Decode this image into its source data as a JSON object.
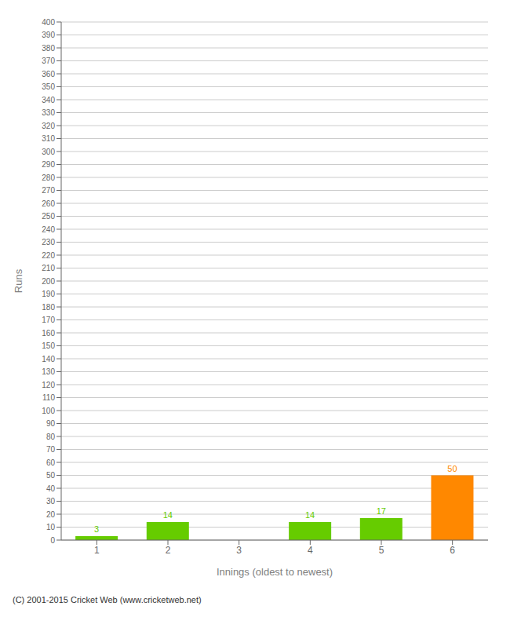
{
  "chart_data": {
    "type": "bar",
    "categories": [
      "1",
      "2",
      "3",
      "4",
      "5",
      "6"
    ],
    "values": [
      3,
      14,
      0,
      14,
      17,
      50
    ],
    "colors": [
      "#66cc00",
      "#66cc00",
      "#66cc00",
      "#66cc00",
      "#66cc00",
      "#ff8800"
    ],
    "x_label": "Innings (oldest to newest)",
    "y_label": "Runs",
    "ylim": [
      0,
      400
    ],
    "yticks": [
      0,
      10,
      20,
      30,
      40,
      50,
      60,
      70,
      80,
      90,
      100,
      110,
      120,
      130,
      140,
      150,
      160,
      170,
      180,
      190,
      200,
      210,
      220,
      230,
      240,
      250,
      260,
      270,
      280,
      290,
      300,
      310,
      320,
      330,
      340,
      350,
      360,
      370,
      380,
      390,
      400
    ],
    "grid": true,
    "data_labels": true,
    "annotations": [
      "(C) 2001-2015 Cricket Web (www.cricketweb.net)"
    ]
  }
}
